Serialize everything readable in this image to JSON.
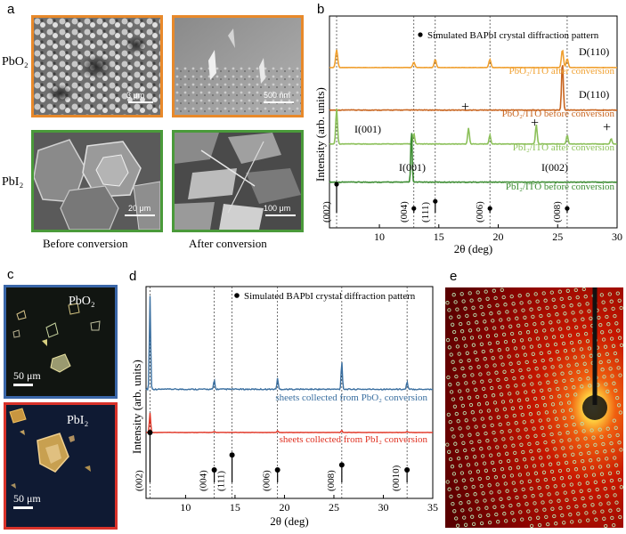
{
  "figure": {
    "panel_labels": {
      "a": "a",
      "b": "b",
      "c": "c",
      "d": "d",
      "e": "e"
    }
  },
  "panel_a": {
    "row_labels": {
      "top": "PbO₂",
      "bottom": "PbI₂"
    },
    "captions": {
      "left": "Before conversion",
      "right": "After conversion"
    },
    "scale_bars": {
      "pbo2_before": "3 μm",
      "pbo2_after": "500 nm",
      "pbi2_before": "20 μm",
      "pbi2_after": "100 μm"
    },
    "colors": {
      "pbo2_border": "#e8892a",
      "pbi2_border": "#4a9a3a"
    }
  },
  "panel_b_chart": {
    "legend": "Simulated  BAPbI crystal diffraction pattern",
    "ylabel": "Intensity (arb. units)",
    "xlabel": "2θ (deg)",
    "xticks": [
      "10",
      "15",
      "20",
      "25",
      "30"
    ],
    "trace_labels": {
      "t1": "PbO₂/ITO after conversion",
      "t2": "PbO₂/ITO before conversion",
      "t3": "PbI₂/ITO after conversion",
      "t4": "PbI₂/ITO before conversion"
    },
    "annotations": {
      "d1": "D(110)",
      "d2": "D(110)",
      "i1": "I(001)",
      "i2": "I(001)",
      "i3": "I(002)"
    },
    "hkl": [
      "(002)",
      "(004)",
      "(111)",
      "(006)",
      "(008)"
    ],
    "plus": "+"
  },
  "panel_c": {
    "labels": {
      "top": "PbO₂",
      "bottom": "PbI₂"
    },
    "scale_bars": {
      "top": "50 μm",
      "bottom": "50 μm"
    },
    "colors": {
      "top_border": "#3a66a8",
      "bottom_border": "#d8322a"
    }
  },
  "panel_d_chart": {
    "legend": "Simulated  BAPbI crystal diffraction pattern",
    "ylabel": "Intensity (arb. units)",
    "xlabel": "2θ (deg)",
    "xticks": [
      "10",
      "15",
      "20",
      "25",
      "30",
      "35"
    ],
    "trace_labels": {
      "blue": "sheets collected from PbO₂ conversion",
      "red": "sheets collected from PbI₂ conversion"
    },
    "hkl": [
      "(002)",
      "(004)",
      "(111)",
      "(006)",
      "(008)",
      "(0010)"
    ]
  },
  "chart_data": [
    {
      "type": "line",
      "panel": "b",
      "xlabel": "2θ (deg)",
      "ylabel": "Intensity (arb. units)",
      "xlim": [
        5.8,
        30
      ],
      "xticks": [
        10,
        15,
        20,
        25,
        30
      ],
      "series": [
        {
          "name": "PbO₂/ITO after conversion",
          "color": "#f0a030",
          "peaks": [
            [
              6.4,
              1.0
            ],
            [
              12.9,
              0.3
            ],
            [
              14.7,
              0.45
            ],
            [
              19.3,
              0.45
            ],
            [
              25.4,
              1.0
            ],
            [
              25.8,
              0.5
            ]
          ]
        },
        {
          "name": "PbO₂/ITO before conversion",
          "color": "#c8641e",
          "peaks": [
            [
              25.4,
              1.0
            ]
          ]
        },
        {
          "name": "PbI₂/ITO after conversion",
          "color": "#8cc05a",
          "peaks": [
            [
              6.4,
              1.0
            ],
            [
              12.9,
              0.3
            ],
            [
              17.5,
              0.45
            ],
            [
              19.3,
              0.25
            ],
            [
              23.2,
              0.55
            ],
            [
              25.8,
              0.25
            ],
            [
              29.5,
              0.15
            ]
          ]
        },
        {
          "name": "PbI₂/ITO before conversion",
          "color": "#3c8c32",
          "peaks": [
            [
              12.7,
              1.0
            ]
          ]
        }
      ],
      "simulated_pattern": [
        {
          "x": 6.4,
          "hkl": "(002)",
          "height": 1.0
        },
        {
          "x": 12.9,
          "hkl": "(004)",
          "height": 0.15
        },
        {
          "x": 14.7,
          "hkl": "(111)",
          "height": 0.4
        },
        {
          "x": 19.3,
          "hkl": "(006)",
          "height": 0.15
        },
        {
          "x": 25.8,
          "hkl": "(008)",
          "height": 0.15
        }
      ]
    },
    {
      "type": "line",
      "panel": "d",
      "xlabel": "2θ (deg)",
      "ylabel": "Intensity (arb. units)",
      "xlim": [
        6,
        35
      ],
      "xticks": [
        10,
        15,
        20,
        25,
        30,
        35
      ],
      "series": [
        {
          "name": "sheets collected from PbO₂ conversion",
          "color": "#3a6fa0",
          "peaks": [
            [
              6.4,
              1.0
            ],
            [
              12.9,
              0.1
            ],
            [
              19.3,
              0.12
            ],
            [
              25.8,
              0.3
            ],
            [
              32.4,
              0.08
            ]
          ]
        },
        {
          "name": "sheets collected from PbI₂ conversion",
          "color": "#e03020",
          "peaks": [
            [
              6.4,
              1.0
            ],
            [
              12.9,
              0.05
            ],
            [
              19.3,
              0.08
            ],
            [
              25.8,
              0.1
            ],
            [
              32.4,
              0.05
            ]
          ]
        }
      ],
      "simulated_pattern": [
        {
          "x": 6.4,
          "hkl": "(002)",
          "height": 1.0
        },
        {
          "x": 12.9,
          "hkl": "(004)",
          "height": 0.25
        },
        {
          "x": 14.7,
          "hkl": "(111)",
          "height": 0.55
        },
        {
          "x": 19.3,
          "hkl": "(006)",
          "height": 0.25
        },
        {
          "x": 25.8,
          "hkl": "(008)",
          "height": 0.35
        },
        {
          "x": 32.4,
          "hkl": "(0010)",
          "height": 0.25
        }
      ]
    }
  ]
}
